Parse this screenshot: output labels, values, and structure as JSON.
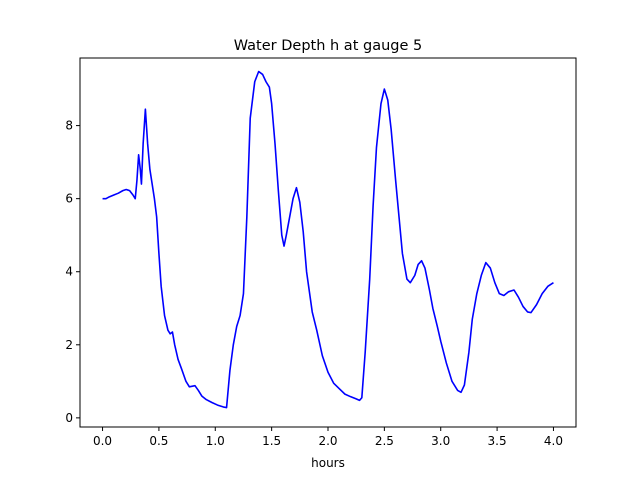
{
  "chart_data": {
    "type": "line",
    "title": "Water Depth h at gauge 5",
    "xlabel": "hours",
    "ylabel": "",
    "xlim": [
      -0.2,
      4.2
    ],
    "ylim": [
      -0.25,
      9.85
    ],
    "x_ticks": [
      0.0,
      0.5,
      1.0,
      1.5,
      2.0,
      2.5,
      3.0,
      3.5,
      4.0
    ],
    "x_tick_labels": [
      "0.0",
      "0.5",
      "1.0",
      "1.5",
      "2.0",
      "2.5",
      "3.0",
      "3.5",
      "4.0"
    ],
    "y_ticks": [
      0,
      2,
      4,
      6,
      8
    ],
    "y_tick_labels": [
      "0",
      "2",
      "4",
      "6",
      "8"
    ],
    "grid": false,
    "legend": "none",
    "series": [
      {
        "color": "#0000ff",
        "points": [
          [
            0.0,
            6.0
          ],
          [
            0.03,
            6.0
          ],
          [
            0.06,
            6.05
          ],
          [
            0.1,
            6.1
          ],
          [
            0.14,
            6.15
          ],
          [
            0.18,
            6.22
          ],
          [
            0.21,
            6.25
          ],
          [
            0.24,
            6.22
          ],
          [
            0.27,
            6.1
          ],
          [
            0.29,
            6.0
          ],
          [
            0.305,
            6.5
          ],
          [
            0.32,
            7.2
          ],
          [
            0.335,
            6.8
          ],
          [
            0.345,
            6.4
          ],
          [
            0.36,
            7.5
          ],
          [
            0.38,
            8.45
          ],
          [
            0.4,
            7.5
          ],
          [
            0.42,
            6.8
          ],
          [
            0.44,
            6.4
          ],
          [
            0.46,
            6.0
          ],
          [
            0.48,
            5.5
          ],
          [
            0.5,
            4.5
          ],
          [
            0.52,
            3.6
          ],
          [
            0.55,
            2.8
          ],
          [
            0.58,
            2.4
          ],
          [
            0.6,
            2.3
          ],
          [
            0.62,
            2.35
          ],
          [
            0.64,
            2.0
          ],
          [
            0.67,
            1.6
          ],
          [
            0.7,
            1.35
          ],
          [
            0.74,
            1.0
          ],
          [
            0.77,
            0.85
          ],
          [
            0.82,
            0.88
          ],
          [
            0.85,
            0.75
          ],
          [
            0.88,
            0.6
          ],
          [
            0.92,
            0.5
          ],
          [
            0.97,
            0.42
          ],
          [
            1.02,
            0.35
          ],
          [
            1.07,
            0.3
          ],
          [
            1.1,
            0.28
          ],
          [
            1.13,
            1.3
          ],
          [
            1.16,
            2.0
          ],
          [
            1.19,
            2.5
          ],
          [
            1.22,
            2.8
          ],
          [
            1.25,
            3.4
          ],
          [
            1.28,
            5.5
          ],
          [
            1.31,
            8.2
          ],
          [
            1.35,
            9.2
          ],
          [
            1.385,
            9.48
          ],
          [
            1.42,
            9.4
          ],
          [
            1.45,
            9.2
          ],
          [
            1.48,
            9.05
          ],
          [
            1.5,
            8.6
          ],
          [
            1.53,
            7.5
          ],
          [
            1.56,
            6.2
          ],
          [
            1.59,
            5.0
          ],
          [
            1.61,
            4.7
          ],
          [
            1.63,
            5.0
          ],
          [
            1.66,
            5.5
          ],
          [
            1.69,
            6.0
          ],
          [
            1.72,
            6.3
          ],
          [
            1.75,
            5.9
          ],
          [
            1.78,
            5.1
          ],
          [
            1.81,
            4.0
          ],
          [
            1.86,
            2.9
          ],
          [
            1.9,
            2.4
          ],
          [
            1.95,
            1.7
          ],
          [
            2.0,
            1.25
          ],
          [
            2.05,
            0.95
          ],
          [
            2.1,
            0.8
          ],
          [
            2.15,
            0.65
          ],
          [
            2.2,
            0.58
          ],
          [
            2.25,
            0.52
          ],
          [
            2.28,
            0.48
          ],
          [
            2.3,
            0.55
          ],
          [
            2.33,
            1.8
          ],
          [
            2.37,
            3.8
          ],
          [
            2.4,
            5.8
          ],
          [
            2.43,
            7.4
          ],
          [
            2.47,
            8.6
          ],
          [
            2.5,
            9.0
          ],
          [
            2.53,
            8.7
          ],
          [
            2.56,
            7.9
          ],
          [
            2.6,
            6.5
          ],
          [
            2.63,
            5.5
          ],
          [
            2.66,
            4.5
          ],
          [
            2.7,
            3.8
          ],
          [
            2.73,
            3.7
          ],
          [
            2.77,
            3.9
          ],
          [
            2.8,
            4.2
          ],
          [
            2.83,
            4.3
          ],
          [
            2.86,
            4.1
          ],
          [
            2.9,
            3.5
          ],
          [
            2.93,
            3.0
          ],
          [
            2.97,
            2.5
          ],
          [
            3.0,
            2.1
          ],
          [
            3.05,
            1.5
          ],
          [
            3.1,
            1.0
          ],
          [
            3.15,
            0.75
          ],
          [
            3.18,
            0.7
          ],
          [
            3.21,
            0.9
          ],
          [
            3.25,
            1.8
          ],
          [
            3.28,
            2.7
          ],
          [
            3.32,
            3.4
          ],
          [
            3.36,
            3.9
          ],
          [
            3.4,
            4.25
          ],
          [
            3.44,
            4.1
          ],
          [
            3.48,
            3.7
          ],
          [
            3.52,
            3.4
          ],
          [
            3.56,
            3.35
          ],
          [
            3.6,
            3.45
          ],
          [
            3.65,
            3.5
          ],
          [
            3.69,
            3.3
          ],
          [
            3.73,
            3.05
          ],
          [
            3.77,
            2.9
          ],
          [
            3.8,
            2.88
          ],
          [
            3.85,
            3.1
          ],
          [
            3.9,
            3.4
          ],
          [
            3.95,
            3.6
          ],
          [
            4.0,
            3.7
          ]
        ]
      }
    ]
  }
}
